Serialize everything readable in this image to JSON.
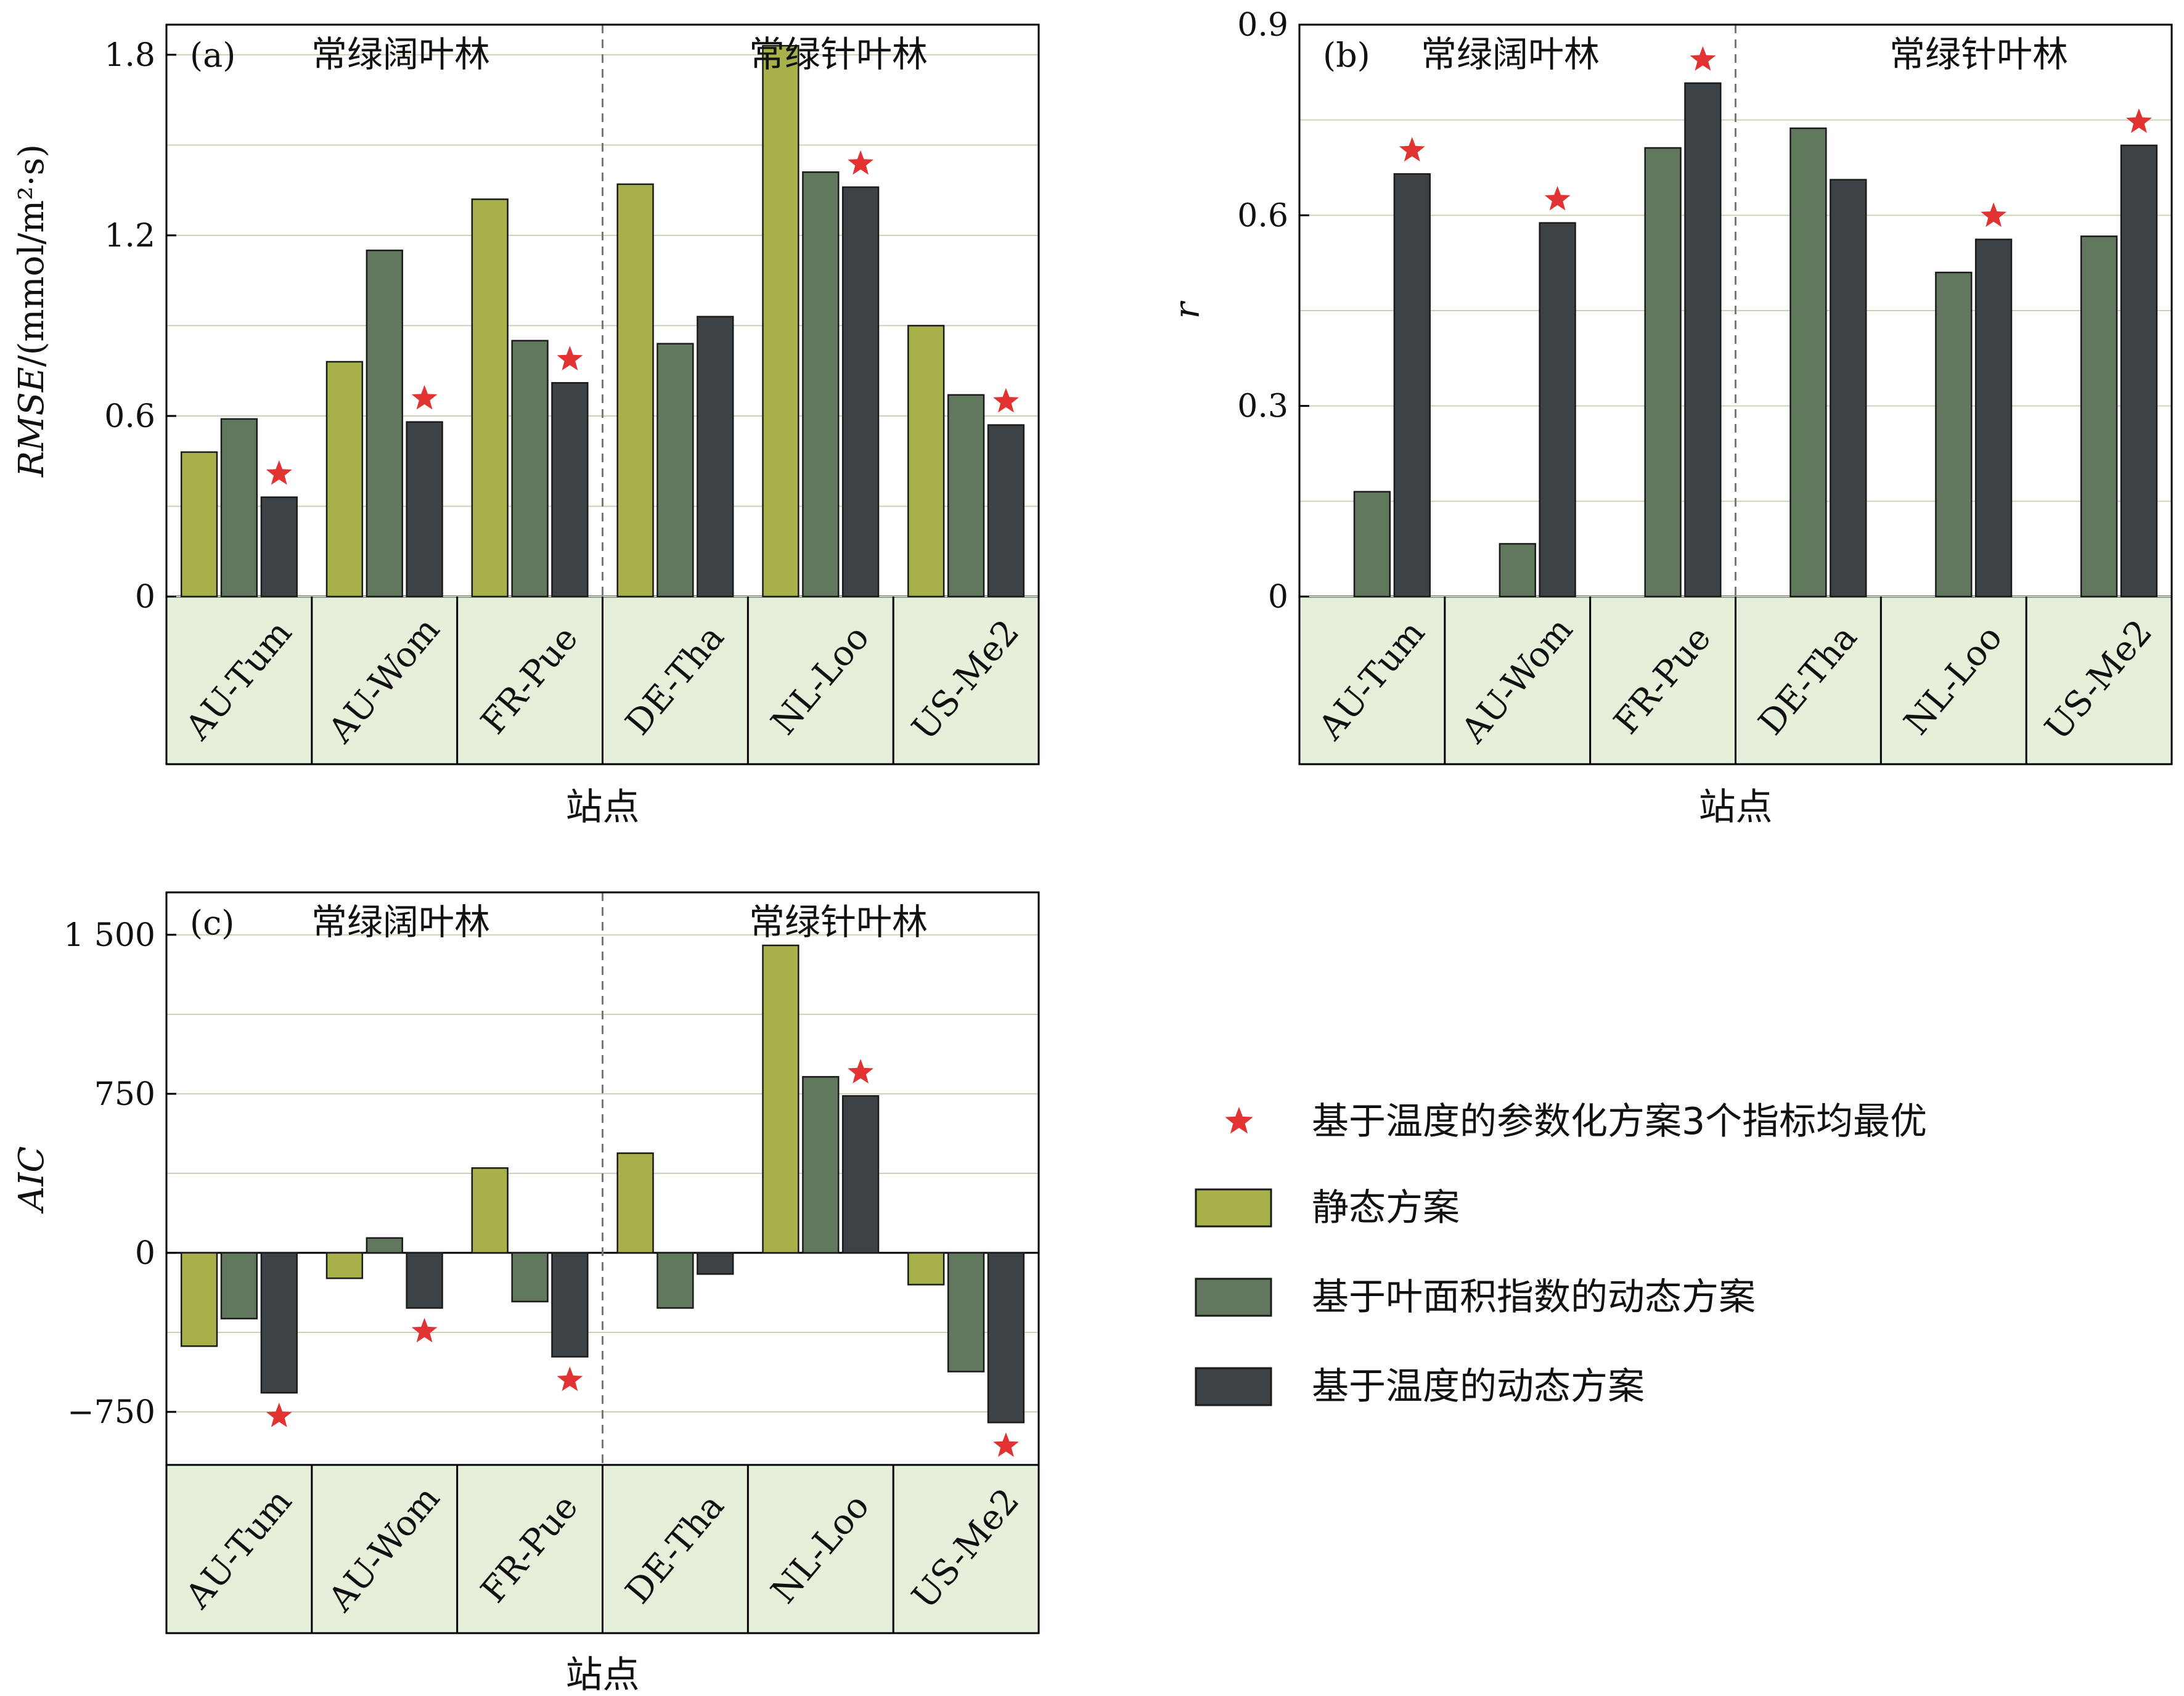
{
  "legend": {
    "star_label": "基于温度的参数化方案3个指标均最优",
    "items": [
      {
        "label": "静态方案",
        "color": "#a8b04a"
      },
      {
        "label": "基于叶面积指数的动态方案",
        "color": "#62785e"
      },
      {
        "label": "基于温度的动态方案",
        "color": "#3c4245"
      }
    ]
  },
  "colors": {
    "static": "#a8b04a",
    "lai": "#62785e",
    "temp": "#3c4245",
    "star": "#e23232",
    "label_band": "#e6efd9",
    "grid": "#c9d2b8",
    "divider": "#777777"
  },
  "chart_data": [
    {
      "panel": "(a)",
      "type": "bar",
      "ylabel": "RMSE/(mmol/m²·s)",
      "xlabel": "站点",
      "ylim": [
        0,
        1.9
      ],
      "yticks": [
        0,
        0.6,
        1.2,
        1.8
      ],
      "yticklabels": [
        "0",
        "0.6",
        "1.2",
        "1.8"
      ],
      "grid": true,
      "groups": [
        "常绿阔叶林",
        "常绿针叶林"
      ],
      "categories": [
        "AU-Tum",
        "AU-Wom",
        "FR-Pue",
        "DE-Tha",
        "NL-Loo",
        "US-Me2"
      ],
      "series": [
        {
          "name": "静态方案",
          "values": [
            0.48,
            0.78,
            1.32,
            1.37,
            1.83,
            0.9
          ]
        },
        {
          "name": "基于叶面积指数的动态方案",
          "values": [
            0.59,
            1.15,
            0.85,
            0.84,
            1.41,
            0.67
          ]
        },
        {
          "name": "基于温度的动态方案",
          "values": [
            0.33,
            0.58,
            0.71,
            0.93,
            1.36,
            0.57
          ]
        }
      ],
      "stars": [
        0,
        1,
        2,
        4,
        5
      ]
    },
    {
      "panel": "(b)",
      "type": "bar",
      "ylabel": "r",
      "xlabel": "",
      "ylim": [
        0,
        0.9
      ],
      "yticks": [
        0,
        0.3,
        0.6,
        0.9
      ],
      "yticklabels": [
        "0",
        "0.3",
        "0.6",
        "0.9"
      ],
      "grid": true,
      "groups": [
        "常绿阔叶林",
        "常绿针叶林"
      ],
      "categories": [
        "AU-Tum",
        "AU-Wom",
        "FR-Pue",
        "DE-Tha",
        "NL-Loo",
        "US-Me2"
      ],
      "series": [
        {
          "name": "静态方案",
          "values": [
            null,
            null,
            null,
            null,
            null,
            null
          ]
        },
        {
          "name": "基于叶面积指数的动态方案",
          "values": [
            0.165,
            0.083,
            0.706,
            0.737,
            0.51,
            0.567
          ]
        },
        {
          "name": "基于温度的动态方案",
          "values": [
            0.665,
            0.588,
            0.808,
            0.656,
            0.562,
            0.71
          ]
        }
      ],
      "stars": [
        0,
        1,
        2,
        4,
        5
      ]
    },
    {
      "panel": "(c)",
      "type": "bar",
      "ylabel": "AIC",
      "xlabel": "站点",
      "ylim": [
        -1000,
        1700
      ],
      "yticks": [
        -750,
        0,
        750,
        1500
      ],
      "yticklabels": [
        "−750",
        "0",
        "750",
        "1 500"
      ],
      "grid": true,
      "groups": [
        "常绿阔叶林",
        "常绿针叶林"
      ],
      "categories": [
        "AU-Tum",
        "AU-Wom",
        "FR-Pue",
        "DE-Tha",
        "NL-Loo",
        "US-Me2"
      ],
      "series": [
        {
          "name": "静态方案",
          "values": [
            -440,
            -120,
            400,
            470,
            1450,
            -150
          ]
        },
        {
          "name": "基于叶面积指数的动态方案",
          "values": [
            -310,
            70,
            -230,
            -260,
            830,
            -560
          ]
        },
        {
          "name": "基于温度的动态方案",
          "values": [
            -660,
            -260,
            -490,
            -100,
            740,
            -800
          ]
        }
      ],
      "stars": [
        0,
        1,
        2,
        4,
        5
      ]
    }
  ]
}
